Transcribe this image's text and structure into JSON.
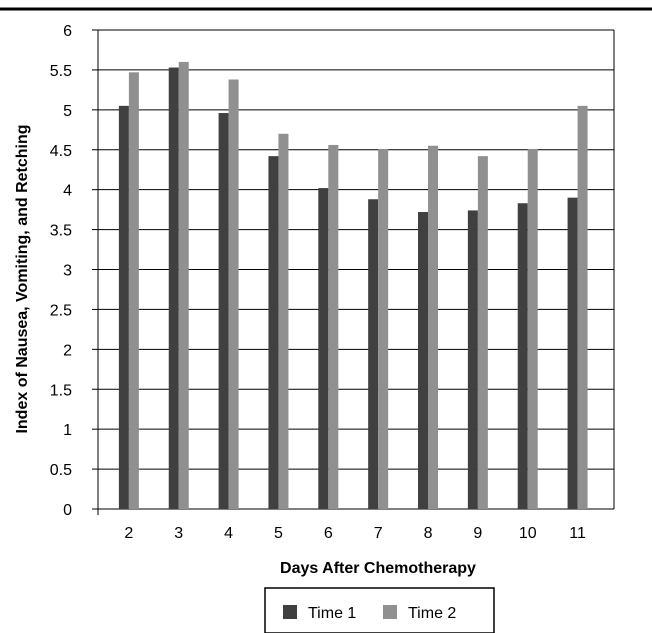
{
  "chart_data": {
    "type": "bar",
    "xlabel": "Days After Chemotherapy",
    "ylabel": "Index of Nausea, Vomiting, and Retching",
    "ylim": [
      0,
      6
    ],
    "yticks": [
      "0",
      "0.5",
      "1",
      "1.5",
      "2",
      "2.5",
      "3",
      "3.5",
      "4",
      "4.5",
      "5",
      "5.5",
      "6"
    ],
    "grid": "horizontal",
    "legend_position": "bottom",
    "categories": [
      "2",
      "3",
      "4",
      "5",
      "6",
      "7",
      "8",
      "9",
      "10",
      "11"
    ],
    "series": [
      {
        "name": "Time 1",
        "color": "#404040",
        "values": [
          5.05,
          5.53,
          4.96,
          4.42,
          4.02,
          3.88,
          3.72,
          3.74,
          3.83,
          3.9
        ]
      },
      {
        "name": "Time 2",
        "color": "#909090",
        "values": [
          5.47,
          5.6,
          5.38,
          4.7,
          4.56,
          4.51,
          4.55,
          4.42,
          4.51,
          5.05
        ]
      }
    ]
  }
}
